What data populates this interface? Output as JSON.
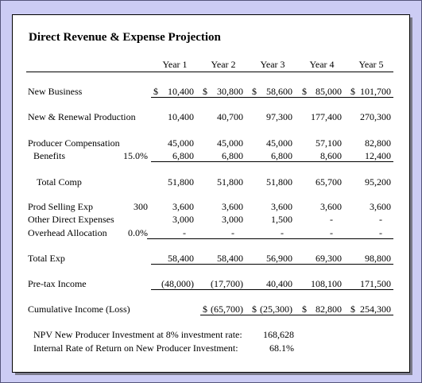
{
  "title": "Direct Revenue & Expense Projection",
  "columns": [
    "Year 1",
    "Year 2",
    "Year 3",
    "Year 4",
    "Year 5"
  ],
  "rows": [
    {
      "label": "New Business",
      "cells": [
        {
          "currency": "$",
          "amount": "10,400"
        },
        {
          "currency": "$",
          "amount": "30,800"
        },
        {
          "currency": "$",
          "amount": "58,600"
        },
        {
          "currency": "$",
          "amount": "85,000"
        },
        {
          "currency": "$",
          "amount": "101,700"
        }
      ]
    },
    {
      "label": "New & Renewal Production",
      "cells": [
        "10,400",
        "40,700",
        "97,300",
        "177,400",
        "270,300"
      ]
    },
    {
      "label": "Producer Compensation",
      "cells": [
        "45,000",
        "45,000",
        "45,000",
        "57,100",
        "82,800"
      ]
    },
    {
      "label": "Benefits",
      "param": "15.0%",
      "cells": [
        "6,800",
        "6,800",
        "6,800",
        "8,600",
        "12,400"
      ]
    },
    {
      "label": "Total Comp",
      "cells": [
        "51,800",
        "51,800",
        "51,800",
        "65,700",
        "95,200"
      ]
    },
    {
      "label": "Prod Selling Exp",
      "param": "300",
      "cells": [
        "3,600",
        "3,600",
        "3,600",
        "3,600",
        "3,600"
      ]
    },
    {
      "label": "Other Direct Expenses",
      "cells": [
        "3,000",
        "3,000",
        "1,500",
        "-",
        "-"
      ]
    },
    {
      "label": "Overhead Allocation",
      "param": "0.0%",
      "cells": [
        "-",
        "-",
        "-",
        "-",
        "-"
      ]
    },
    {
      "label": "Total Exp",
      "cells": [
        "58,400",
        "58,400",
        "56,900",
        "69,300",
        "98,800"
      ]
    },
    {
      "label": "Pre-tax Income",
      "cells": [
        "(48,000)",
        "(17,700)",
        "40,400",
        "108,100",
        "171,500"
      ]
    },
    {
      "label": "Cumulative Income (Loss)",
      "cells": [
        null,
        {
          "currency": "$",
          "amount": "(65,700)"
        },
        {
          "currency": "$",
          "amount": "(25,300)"
        },
        {
          "currency": "$",
          "amount": "82,800"
        },
        {
          "currency": "$",
          "amount": "254,300"
        }
      ]
    }
  ],
  "notes": [
    {
      "label": "NPV New Producer Investment at 8% investment rate:",
      "value": "168,628"
    },
    {
      "label": "Internal Rate of Return on New Producer Investment:",
      "value": "68.1%"
    }
  ]
}
